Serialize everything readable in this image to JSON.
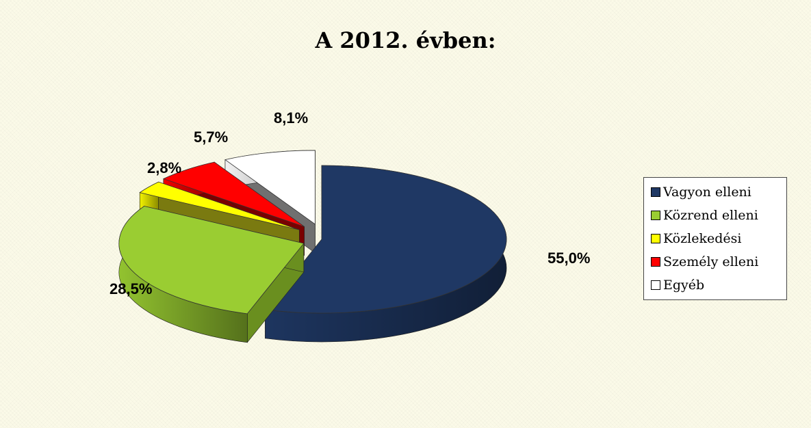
{
  "chart_data": {
    "type": "pie",
    "title": "A 2012. évben:",
    "categories": [
      "Vagyon elleni",
      "Közrend elleni",
      "Közlekedési",
      "Személy elleni",
      "Egyéb"
    ],
    "values": [
      55.0,
      28.5,
      2.8,
      5.7,
      8.1
    ],
    "labels": [
      "55,0%",
      "28,5%",
      "2,8%",
      "5,7%",
      "8,1%"
    ],
    "colors": [
      "#1f3864",
      "#9acd32",
      "#ffff00",
      "#ff0000",
      "#ffffff"
    ],
    "legend_position": "right",
    "exploded": true,
    "three_d": true
  }
}
